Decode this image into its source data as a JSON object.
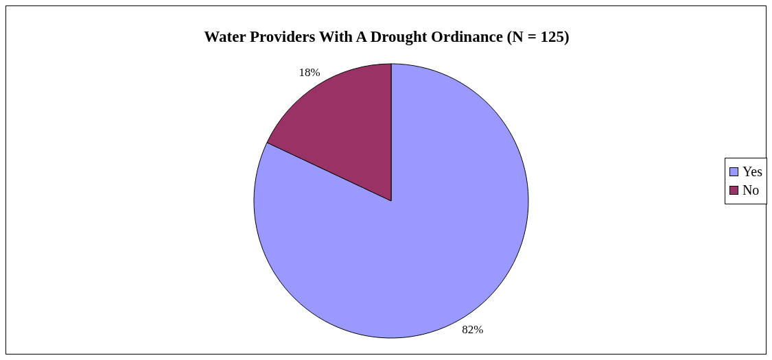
{
  "chart_data": {
    "type": "pie",
    "title": "Water Providers With A Drought Ordinance (N = 125)",
    "categories": [
      "Yes",
      "No"
    ],
    "values": [
      82,
      18
    ],
    "value_labels": [
      "82%",
      "18%"
    ],
    "colors": [
      "#9999ff",
      "#993366"
    ],
    "legend": "right"
  }
}
